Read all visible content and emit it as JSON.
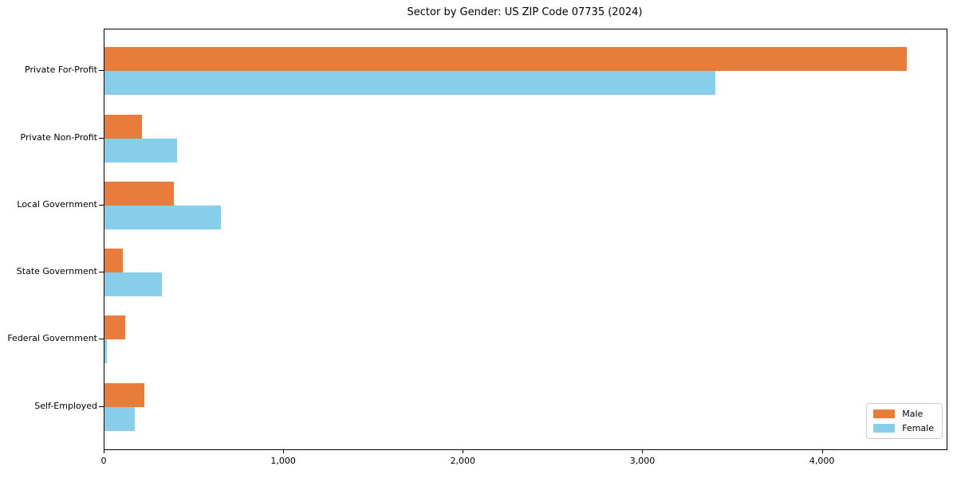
{
  "chart_data": {
    "type": "bar",
    "orientation": "horizontal",
    "title": "Sector by Gender: US ZIP Code 07735 (2024)",
    "categories": [
      "Private For-Profit",
      "Private Non-Profit",
      "Local Government",
      "State Government",
      "Federal Government",
      "Self-Employed"
    ],
    "series": [
      {
        "name": "Male",
        "color": "#e87d3b",
        "values": [
          4467,
          210,
          385,
          100,
          115,
          220
        ]
      },
      {
        "name": "Female",
        "color": "#87ceeb",
        "values": [
          3400,
          405,
          650,
          320,
          13,
          170
        ]
      }
    ],
    "xlabel": "",
    "ylabel": "",
    "xlim": [
      0,
      4690
    ],
    "xticks": [
      0,
      1000,
      2000,
      3000,
      4000
    ],
    "xtick_labels": [
      "0",
      "1,000",
      "2,000",
      "3,000",
      "4,000"
    ],
    "legend_position": "lower right",
    "grid": false
  }
}
